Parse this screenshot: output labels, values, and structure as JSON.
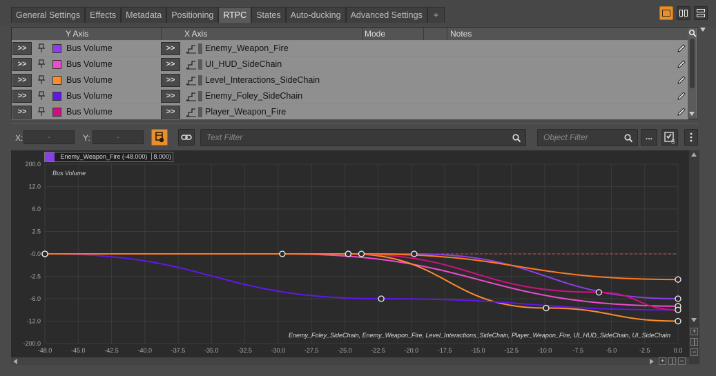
{
  "tabs": [
    {
      "label": "General Settings",
      "active": false
    },
    {
      "label": "Effects",
      "active": false
    },
    {
      "label": "Metadata",
      "active": false
    },
    {
      "label": "Positioning",
      "active": false
    },
    {
      "label": "RTPC",
      "active": true
    },
    {
      "label": "States",
      "active": false
    },
    {
      "label": "Auto-ducking",
      "active": false
    },
    {
      "label": "Advanced Settings",
      "active": false
    },
    {
      "label": "+",
      "active": false
    }
  ],
  "rtpc_table": {
    "headers": {
      "y_axis": "Y Axis",
      "x_axis": "X Axis",
      "mode": "Mode",
      "notes": "Notes"
    },
    "expand_label": ">>",
    "rows": [
      {
        "y_axis": "Bus Volume",
        "swatch": "#8b3ee8",
        "x_axis": "Enemy_Weapon_Fire"
      },
      {
        "y_axis": "Bus Volume",
        "swatch": "#ee4ccf",
        "x_axis": "UI_HUD_SideChain"
      },
      {
        "y_axis": "Bus Volume",
        "swatch": "#ff8c2a",
        "x_axis": "Level_Interactions_SideChain"
      },
      {
        "y_axis": "Bus Volume",
        "swatch": "#6018e8",
        "x_axis": "Enemy_Foley_SideChain"
      },
      {
        "y_axis": "Bus Volume",
        "swatch": "#cc1080",
        "x_axis": "Player_Weapon_Fire"
      }
    ]
  },
  "toolbar": {
    "x_label": "X:",
    "x_value": "-",
    "y_label": "Y:",
    "y_value": "-",
    "text_filter_placeholder": "Text Filter",
    "object_filter_placeholder": "Object Filter",
    "more_label": "..."
  },
  "graph": {
    "legend_name": "Enemy_Weapon_Fire (-48.000)",
    "legend_value": "8.000)",
    "legend_color": "#8b3ee8",
    "y_title": "Bus Volume",
    "bottom_legend": "Enemy_Foley_SideChain, Enemy_Weapon_Fire, Level_Interactions_SideChain, Player_Weapon_Fire, UI_HUD_SideChain, UI_SideChain",
    "y_ticks": [
      "200.0",
      "12.0",
      "6.0",
      "2.5",
      "-0.0",
      "-2.5",
      "-6.0",
      "-12.0",
      "-200.0"
    ],
    "x_ticks": [
      "-48.0",
      "-45.0",
      "-42.5",
      "-40.0",
      "-37.5",
      "-35.0",
      "-32.5",
      "-30.0",
      "-27.5",
      "-25.0",
      "-22.5",
      "-20.0",
      "-17.5",
      "-15.0",
      "-12.5",
      "-10.0",
      "-7.5",
      "-5.0",
      "-2.5",
      "0.0"
    ]
  },
  "chart_data": {
    "type": "line",
    "title": "",
    "xlabel": "",
    "ylabel": "Bus Volume",
    "xlim": [
      -48,
      0
    ],
    "y_scale": "piecewise, ticks: 200.0, 12.0, 6.0, 2.5, -0.0, -2.5, -6.0, -12.0, -200.0",
    "series": [
      {
        "name": "Enemy_Weapon_Fire",
        "color": "#8b3ee8",
        "points": [
          [
            -48,
            0
          ],
          [
            -20,
            0
          ],
          [
            0,
            -6.0
          ]
        ]
      },
      {
        "name": "UI_HUD_SideChain",
        "color": "#ee4ccf",
        "points": [
          [
            -48,
            0
          ],
          [
            -30,
            0
          ],
          [
            0,
            -8.0
          ]
        ]
      },
      {
        "name": "Level_Interactions_SideChain",
        "color": "#ff8c2a",
        "points": [
          [
            -48,
            0
          ],
          [
            -25,
            0
          ],
          [
            -10,
            -8.5
          ],
          [
            0,
            -12.0
          ]
        ]
      },
      {
        "name": "Enemy_Foley_SideChain",
        "color": "#6018e8",
        "points": [
          [
            -48,
            0
          ],
          [
            -22.5,
            -6.0
          ],
          [
            0,
            -9.0
          ]
        ]
      },
      {
        "name": "Player_Weapon_Fire",
        "color": "#cc1080",
        "points": [
          [
            -48,
            0
          ],
          [
            -25,
            0
          ],
          [
            -6,
            -5.0
          ],
          [
            0,
            -9.0
          ]
        ]
      },
      {
        "name": "UI_SideChain",
        "color": "#ff7a20",
        "points": [
          [
            -48,
            0
          ],
          [
            -24,
            0
          ],
          [
            0,
            -3.0
          ]
        ]
      }
    ]
  }
}
